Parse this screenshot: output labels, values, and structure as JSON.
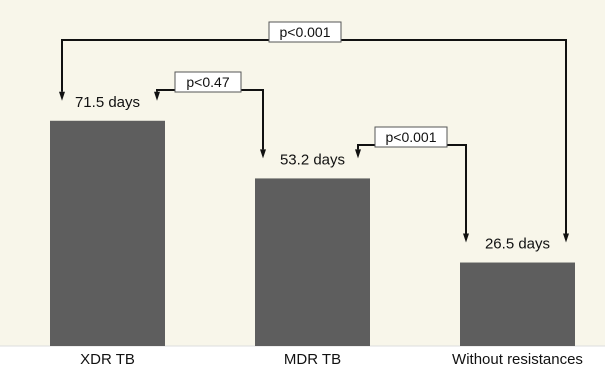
{
  "chart_data": {
    "type": "bar",
    "categories": [
      "XDR TB",
      "MDR TB",
      "Without resistances"
    ],
    "values": [
      71.5,
      53.2,
      26.5
    ],
    "data_labels": [
      "71.5 days",
      "53.2 days",
      "26.5 days"
    ],
    "title": "",
    "xlabel": "",
    "ylabel": "",
    "ylim": [
      0,
      100
    ],
    "grid": false,
    "legend": "none",
    "colors": {
      "plot_background": "#f8f6ea",
      "bar": "#5e5e5e",
      "annotation": "#111111"
    },
    "comparisons": [
      {
        "from": 0,
        "to": 2,
        "label": "p<0.001"
      },
      {
        "from": 0,
        "to": 1,
        "label": "p<0.47"
      },
      {
        "from": 1,
        "to": 2,
        "label": "p<0.001"
      }
    ]
  }
}
